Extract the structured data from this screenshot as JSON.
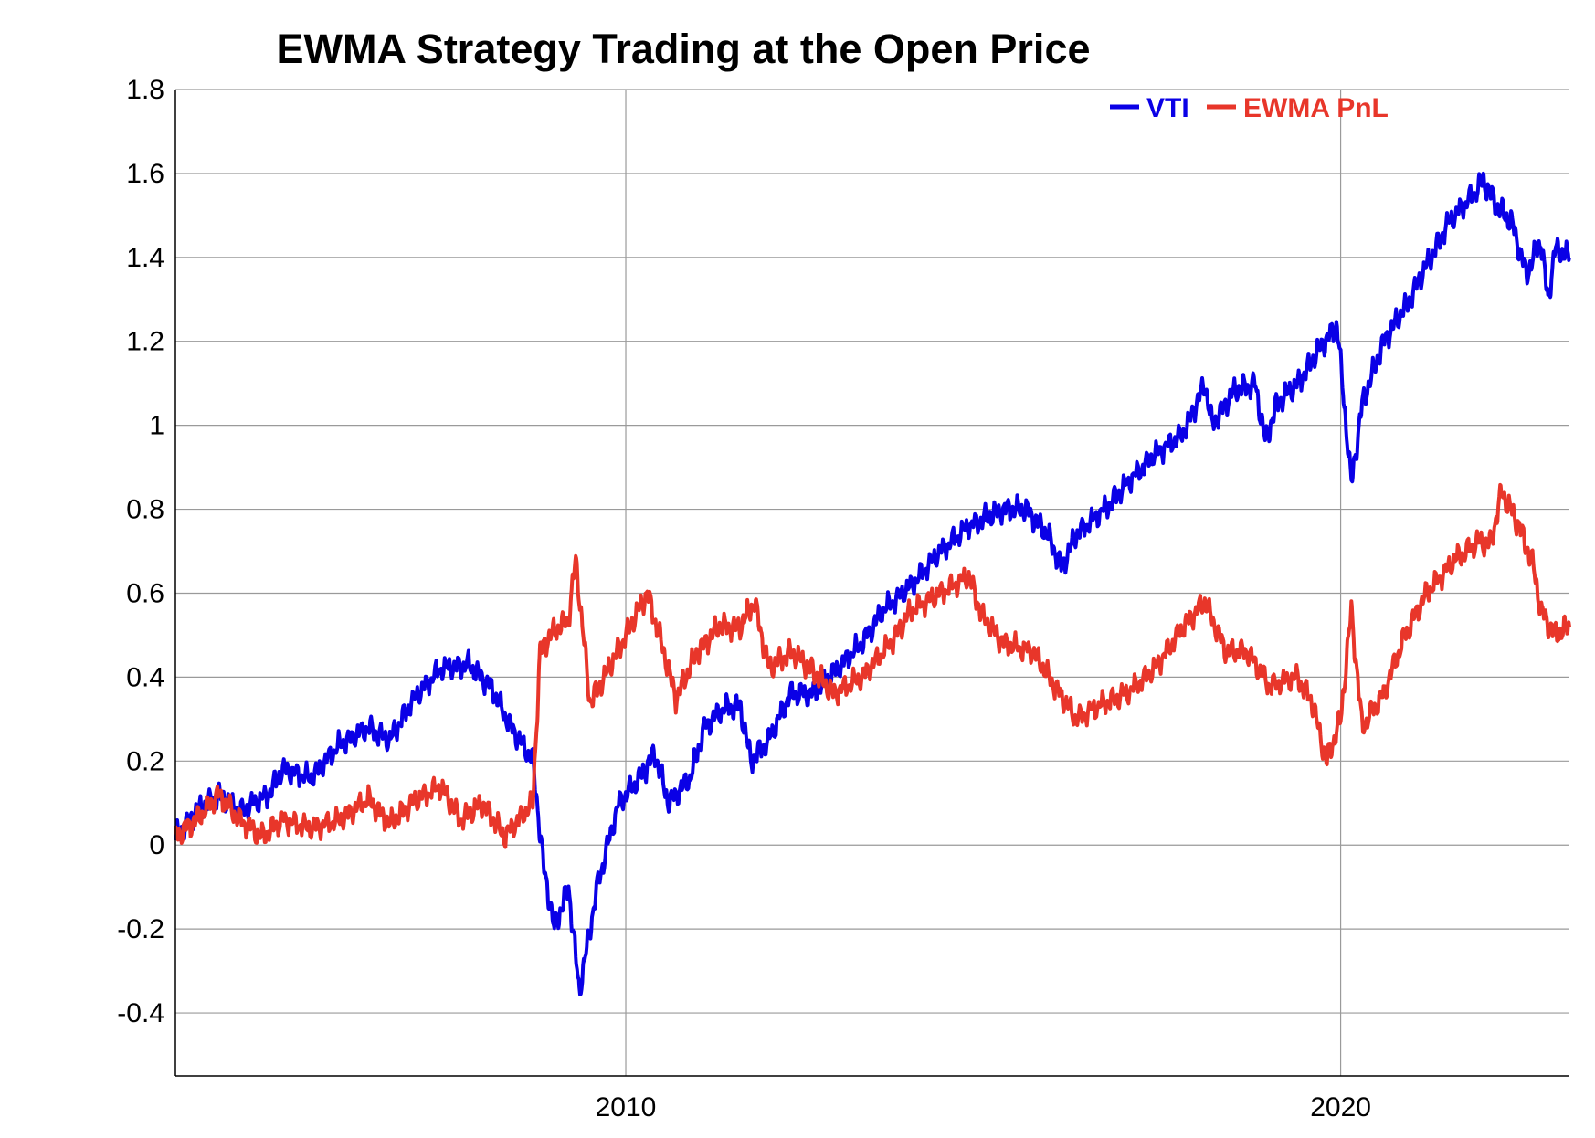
{
  "chart_data": {
    "type": "line",
    "title": "EWMA Strategy Trading at the Open Price",
    "xlabel": "",
    "ylabel": "",
    "xlim": [
      2003.7,
      2023.2
    ],
    "ylim": [
      -0.55,
      1.8
    ],
    "yticks": [
      -0.4,
      -0.2,
      0,
      0.2,
      0.4,
      0.6,
      0.8,
      1,
      1.2,
      1.4,
      1.6,
      1.8
    ],
    "ytick_labels": [
      "-0.4",
      "-0.2",
      "0",
      "0.2",
      "0.4",
      "0.6",
      "0.8",
      "1",
      "1.2",
      "1.4",
      "1.6",
      "1.8"
    ],
    "xticks": [
      2010,
      2020
    ],
    "xtick_labels": [
      "2010",
      "2020"
    ],
    "grid": true,
    "legend_position": "top-right",
    "series": [
      {
        "name": "VTI",
        "color": "#0a00e6",
        "points": [
          [
            2003.7,
            0.02
          ],
          [
            2004.0,
            0.08
          ],
          [
            2004.3,
            0.12
          ],
          [
            2004.6,
            0.08
          ],
          [
            2005.0,
            0.12
          ],
          [
            2005.2,
            0.18
          ],
          [
            2005.6,
            0.16
          ],
          [
            2006.0,
            0.24
          ],
          [
            2006.4,
            0.28
          ],
          [
            2006.7,
            0.25
          ],
          [
            2007.0,
            0.34
          ],
          [
            2007.4,
            0.42
          ],
          [
            2007.8,
            0.43
          ],
          [
            2008.1,
            0.38
          ],
          [
            2008.4,
            0.28
          ],
          [
            2008.7,
            0.2
          ],
          [
            2008.85,
            -0.05
          ],
          [
            2009.0,
            -0.2
          ],
          [
            2009.2,
            -0.1
          ],
          [
            2009.35,
            -0.35
          ],
          [
            2009.6,
            -0.1
          ],
          [
            2009.9,
            0.1
          ],
          [
            2010.2,
            0.16
          ],
          [
            2010.4,
            0.22
          ],
          [
            2010.6,
            0.1
          ],
          [
            2010.9,
            0.16
          ],
          [
            2011.1,
            0.28
          ],
          [
            2011.4,
            0.33
          ],
          [
            2011.6,
            0.33
          ],
          [
            2011.75,
            0.2
          ],
          [
            2012.0,
            0.25
          ],
          [
            2012.3,
            0.36
          ],
          [
            2012.6,
            0.36
          ],
          [
            2012.9,
            0.41
          ],
          [
            2013.3,
            0.48
          ],
          [
            2013.6,
            0.56
          ],
          [
            2014.0,
            0.62
          ],
          [
            2014.4,
            0.7
          ],
          [
            2014.8,
            0.76
          ],
          [
            2015.3,
            0.8
          ],
          [
            2015.6,
            0.8
          ],
          [
            2015.9,
            0.74
          ],
          [
            2016.1,
            0.66
          ],
          [
            2016.3,
            0.74
          ],
          [
            2016.7,
            0.8
          ],
          [
            2017.0,
            0.86
          ],
          [
            2017.4,
            0.93
          ],
          [
            2017.8,
            0.98
          ],
          [
            2018.1,
            1.1
          ],
          [
            2018.2,
            1.0
          ],
          [
            2018.5,
            1.08
          ],
          [
            2018.8,
            1.1
          ],
          [
            2018.95,
            0.96
          ],
          [
            2019.1,
            1.05
          ],
          [
            2019.4,
            1.1
          ],
          [
            2019.7,
            1.18
          ],
          [
            2019.95,
            1.24
          ],
          [
            2020.15,
            0.86
          ],
          [
            2020.3,
            1.05
          ],
          [
            2020.6,
            1.2
          ],
          [
            2020.9,
            1.28
          ],
          [
            2021.2,
            1.38
          ],
          [
            2021.5,
            1.48
          ],
          [
            2021.9,
            1.56
          ],
          [
            2022.0,
            1.58
          ],
          [
            2022.2,
            1.52
          ],
          [
            2022.4,
            1.48
          ],
          [
            2022.6,
            1.36
          ],
          [
            2022.8,
            1.44
          ],
          [
            2022.9,
            1.3
          ],
          [
            2023.0,
            1.42
          ],
          [
            2023.2,
            1.4
          ]
        ]
      },
      {
        "name": "EWMA PnL",
        "color": "#e8362a",
        "points": [
          [
            2003.7,
            0.02
          ],
          [
            2004.0,
            0.06
          ],
          [
            2004.3,
            0.12
          ],
          [
            2004.6,
            0.06
          ],
          [
            2004.9,
            0.02
          ],
          [
            2005.2,
            0.06
          ],
          [
            2005.6,
            0.04
          ],
          [
            2006.0,
            0.06
          ],
          [
            2006.4,
            0.11
          ],
          [
            2006.7,
            0.05
          ],
          [
            2007.0,
            0.1
          ],
          [
            2007.4,
            0.14
          ],
          [
            2007.7,
            0.06
          ],
          [
            2008.0,
            0.1
          ],
          [
            2008.3,
            0.02
          ],
          [
            2008.7,
            0.1
          ],
          [
            2008.8,
            0.46
          ],
          [
            2008.95,
            0.5
          ],
          [
            2009.2,
            0.54
          ],
          [
            2009.3,
            0.68
          ],
          [
            2009.5,
            0.34
          ],
          [
            2009.7,
            0.4
          ],
          [
            2010.0,
            0.5
          ],
          [
            2010.3,
            0.6
          ],
          [
            2010.5,
            0.48
          ],
          [
            2010.7,
            0.35
          ],
          [
            2011.0,
            0.46
          ],
          [
            2011.3,
            0.52
          ],
          [
            2011.6,
            0.52
          ],
          [
            2011.8,
            0.58
          ],
          [
            2012.0,
            0.42
          ],
          [
            2012.3,
            0.46
          ],
          [
            2012.6,
            0.42
          ],
          [
            2012.9,
            0.36
          ],
          [
            2013.3,
            0.4
          ],
          [
            2013.7,
            0.48
          ],
          [
            2014.0,
            0.56
          ],
          [
            2014.4,
            0.6
          ],
          [
            2014.8,
            0.64
          ],
          [
            2015.0,
            0.54
          ],
          [
            2015.3,
            0.48
          ],
          [
            2015.7,
            0.46
          ],
          [
            2016.0,
            0.38
          ],
          [
            2016.3,
            0.3
          ],
          [
            2016.7,
            0.34
          ],
          [
            2017.0,
            0.36
          ],
          [
            2017.4,
            0.42
          ],
          [
            2017.8,
            0.52
          ],
          [
            2018.1,
            0.58
          ],
          [
            2018.4,
            0.46
          ],
          [
            2018.7,
            0.46
          ],
          [
            2019.0,
            0.38
          ],
          [
            2019.4,
            0.4
          ],
          [
            2019.6,
            0.34
          ],
          [
            2019.8,
            0.2
          ],
          [
            2020.0,
            0.3
          ],
          [
            2020.15,
            0.56
          ],
          [
            2020.3,
            0.28
          ],
          [
            2020.6,
            0.36
          ],
          [
            2020.9,
            0.5
          ],
          [
            2021.2,
            0.6
          ],
          [
            2021.6,
            0.68
          ],
          [
            2021.9,
            0.72
          ],
          [
            2022.1,
            0.72
          ],
          [
            2022.25,
            0.84
          ],
          [
            2022.5,
            0.76
          ],
          [
            2022.7,
            0.66
          ],
          [
            2022.8,
            0.56
          ],
          [
            2023.0,
            0.5
          ],
          [
            2023.2,
            0.52
          ]
        ]
      }
    ]
  }
}
